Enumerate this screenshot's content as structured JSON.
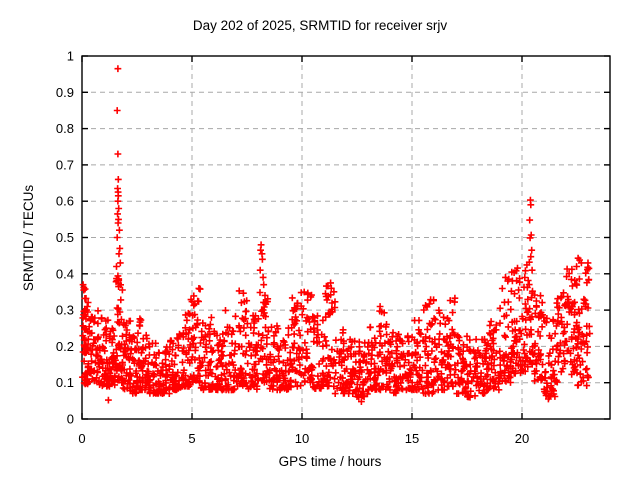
{
  "window": {
    "background": "#ffffff"
  },
  "chart_data": {
    "type": "scatter",
    "title": "Day 202 of 2025, SRMTID for receiver srjv",
    "xlabel": "GPS time / hours",
    "ylabel": "SRMTID / TECUs",
    "xlim": [
      0,
      24
    ],
    "ylim": [
      0,
      1
    ],
    "xticks": {
      "values": [
        0,
        5,
        10,
        15,
        20
      ],
      "labels": [
        "0",
        "5",
        "10",
        "15",
        "20"
      ]
    },
    "yticks": {
      "values": [
        0,
        0.1,
        0.2,
        0.3,
        0.4,
        0.5,
        0.6,
        0.7,
        0.8,
        0.9,
        1
      ],
      "labels": [
        "0",
        "0.1",
        "0.2",
        "0.3",
        "0.4",
        "0.5",
        "0.6",
        "0.7",
        "0.8",
        "0.9",
        "1"
      ]
    },
    "grid": {
      "shown": true,
      "color": "#a8a8a8",
      "style": "dashed"
    },
    "legend": "none",
    "marker": {
      "shape": "plus",
      "color": "#ff0000",
      "size": 6.8,
      "stroke_width": 1.6
    },
    "border_color": "#000000",
    "seed": 2025202,
    "description": "Dense scatter band of SRMTID values (~0.07-0.35 TECUs) across 0-23.1 GPS hours with spikes near 1.6h (to 0.97), 8.2h (to 0.48), 20.4h (to 0.60) and 22.5-23h (to 0.44). No data after ~23.1h.",
    "band_bins": [
      [
        0.02,
        0.3,
        55,
        0.09,
        0.37,
        1.4
      ],
      [
        0.3,
        0.8,
        48,
        0.1,
        0.31,
        1.7
      ],
      [
        0.8,
        1.2,
        42,
        0.09,
        0.28,
        1.7
      ],
      [
        1.2,
        1.55,
        36,
        0.09,
        0.26,
        1.7
      ],
      [
        1.55,
        1.85,
        46,
        0.1,
        0.4,
        1.5
      ],
      [
        1.85,
        2.2,
        40,
        0.08,
        0.27,
        1.7
      ],
      [
        2.2,
        2.6,
        40,
        0.07,
        0.24,
        1.7
      ],
      [
        2.6,
        3.0,
        44,
        0.08,
        0.3,
        1.7
      ],
      [
        3.0,
        3.5,
        46,
        0.07,
        0.22,
        1.7
      ],
      [
        3.5,
        4.0,
        44,
        0.07,
        0.2,
        1.7
      ],
      [
        4.0,
        4.5,
        44,
        0.08,
        0.24,
        1.7
      ],
      [
        4.5,
        5.0,
        46,
        0.09,
        0.33,
        1.6
      ],
      [
        5.0,
        5.4,
        40,
        0.1,
        0.36,
        1.6
      ],
      [
        5.4,
        6.0,
        46,
        0.08,
        0.28,
        1.7
      ],
      [
        6.0,
        6.5,
        42,
        0.08,
        0.25,
        1.7
      ],
      [
        6.5,
        7.0,
        42,
        0.08,
        0.3,
        1.7
      ],
      [
        7.0,
        7.5,
        44,
        0.09,
        0.36,
        1.6
      ],
      [
        7.5,
        8.0,
        42,
        0.08,
        0.3,
        1.7
      ],
      [
        8.0,
        8.5,
        46,
        0.1,
        0.35,
        1.5
      ],
      [
        8.5,
        9.0,
        40,
        0.08,
        0.26,
        1.7
      ],
      [
        9.0,
        9.5,
        40,
        0.08,
        0.28,
        1.7
      ],
      [
        9.5,
        10.0,
        42,
        0.09,
        0.36,
        1.7
      ],
      [
        10.0,
        10.5,
        42,
        0.1,
        0.35,
        1.7
      ],
      [
        10.5,
        11.0,
        40,
        0.08,
        0.3,
        1.7
      ],
      [
        11.0,
        11.5,
        42,
        0.09,
        0.38,
        1.7
      ],
      [
        11.5,
        12.0,
        40,
        0.07,
        0.25,
        1.7
      ],
      [
        12.0,
        12.5,
        40,
        0.07,
        0.22,
        1.7
      ],
      [
        12.5,
        13.0,
        40,
        0.06,
        0.22,
        1.7
      ],
      [
        13.0,
        13.5,
        42,
        0.08,
        0.26,
        1.7
      ],
      [
        13.5,
        14.0,
        42,
        0.08,
        0.31,
        1.6
      ],
      [
        14.0,
        14.5,
        40,
        0.07,
        0.25,
        1.7
      ],
      [
        14.5,
        15.0,
        40,
        0.08,
        0.25,
        1.7
      ],
      [
        15.0,
        15.5,
        40,
        0.08,
        0.28,
        1.7
      ],
      [
        15.5,
        16.0,
        42,
        0.07,
        0.33,
        1.6
      ],
      [
        16.0,
        16.5,
        42,
        0.08,
        0.3,
        1.7
      ],
      [
        16.5,
        17.0,
        42,
        0.09,
        0.34,
        1.6
      ],
      [
        17.0,
        17.5,
        40,
        0.07,
        0.25,
        1.7
      ],
      [
        17.5,
        18.0,
        38,
        0.06,
        0.22,
        1.7
      ],
      [
        18.0,
        18.5,
        38,
        0.07,
        0.22,
        1.7
      ],
      [
        18.5,
        19.0,
        40,
        0.08,
        0.28,
        1.7
      ],
      [
        19.0,
        19.5,
        42,
        0.1,
        0.39,
        1.4
      ],
      [
        19.5,
        20.0,
        48,
        0.12,
        0.42,
        1.2
      ],
      [
        20.0,
        20.5,
        48,
        0.13,
        0.45,
        1.3
      ],
      [
        20.5,
        21.0,
        42,
        0.1,
        0.35,
        1.6
      ],
      [
        21.0,
        21.5,
        40,
        0.06,
        0.28,
        1.7
      ],
      [
        21.5,
        22.0,
        42,
        0.1,
        0.35,
        1.5
      ],
      [
        22.0,
        22.5,
        48,
        0.12,
        0.42,
        1.3
      ],
      [
        22.5,
        23.1,
        55,
        0.09,
        0.44,
        1.3
      ]
    ],
    "outliers": [
      [
        0.05,
        0.37
      ],
      [
        0.08,
        0.355
      ],
      [
        1.63,
        0.965
      ],
      [
        1.6,
        0.85
      ],
      [
        1.63,
        0.73
      ],
      [
        1.65,
        0.66
      ],
      [
        1.62,
        0.635
      ],
      [
        1.64,
        0.625
      ],
      [
        1.65,
        0.615
      ],
      [
        1.63,
        0.6
      ],
      [
        1.67,
        0.58
      ],
      [
        1.62,
        0.565
      ],
      [
        1.66,
        0.55
      ],
      [
        1.64,
        0.54
      ],
      [
        1.7,
        0.52
      ],
      [
        1.6,
        0.5
      ],
      [
        1.72,
        0.47
      ],
      [
        1.68,
        0.455
      ],
      [
        1.74,
        0.43
      ],
      [
        1.57,
        0.42
      ],
      [
        1.2,
        0.052
      ],
      [
        8.14,
        0.48
      ],
      [
        8.12,
        0.465
      ],
      [
        8.18,
        0.455
      ],
      [
        8.2,
        0.44
      ],
      [
        8.1,
        0.41
      ],
      [
        8.23,
        0.39
      ],
      [
        8.26,
        0.37
      ],
      [
        10.1,
        0.35
      ],
      [
        11.3,
        0.375
      ],
      [
        11.33,
        0.36
      ],
      [
        12.7,
        0.048
      ],
      [
        13.55,
        0.31
      ],
      [
        19.25,
        0.39
      ],
      [
        19.4,
        0.385
      ],
      [
        20.38,
        0.603
      ],
      [
        20.4,
        0.59
      ],
      [
        20.35,
        0.548
      ],
      [
        20.42,
        0.507
      ],
      [
        20.37,
        0.499
      ],
      [
        20.44,
        0.465
      ],
      [
        20.4,
        0.447
      ],
      [
        20.33,
        0.432
      ],
      [
        20.46,
        0.41
      ],
      [
        21.2,
        0.055
      ],
      [
        22.55,
        0.443
      ],
      [
        22.62,
        0.438
      ],
      [
        22.7,
        0.43
      ],
      [
        22.48,
        0.42
      ],
      [
        23.0,
        0.43
      ],
      [
        23.04,
        0.415
      ]
    ]
  }
}
